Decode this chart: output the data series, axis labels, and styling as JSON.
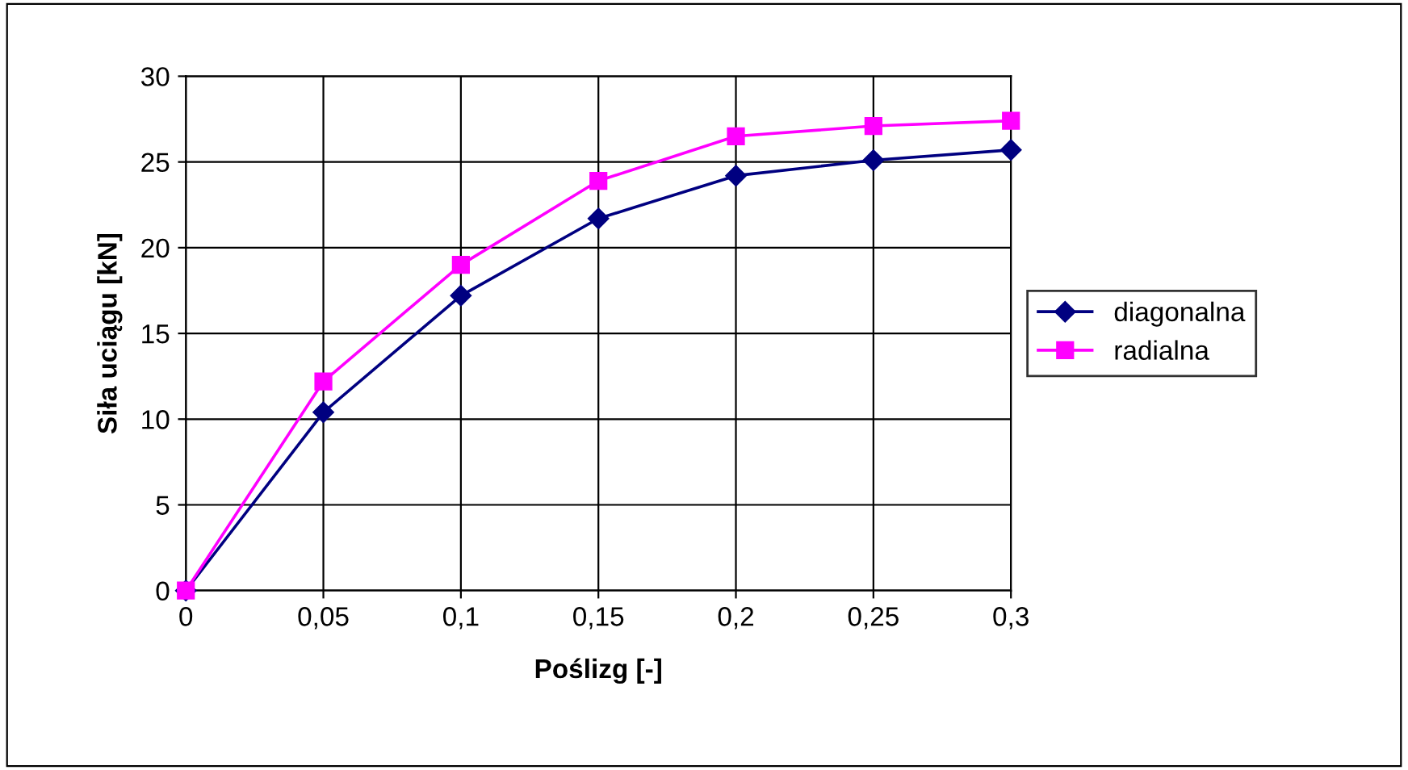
{
  "chart_data": {
    "type": "line",
    "xlabel": "Poślizg [-]",
    "ylabel": "Siła uciągu [kN]",
    "x": [
      0,
      0.05,
      0.1,
      0.15,
      0.2,
      0.25,
      0.3
    ],
    "series": [
      {
        "name": "diagonalna",
        "color": "#000080",
        "marker": "diamond",
        "values": [
          0,
          10.4,
          17.2,
          21.7,
          24.2,
          25.1,
          25.7
        ]
      },
      {
        "name": "radialna",
        "color": "#ff00ff",
        "marker": "square",
        "values": [
          0,
          12.2,
          19.0,
          23.9,
          26.5,
          27.1,
          27.4
        ]
      }
    ],
    "xlim": [
      0,
      0.3
    ],
    "ylim": [
      0,
      30
    ],
    "xticks": [
      0,
      {
        "value": 0.05,
        "label": "0,05"
      },
      {
        "value": 0.1,
        "label": "0,1"
      },
      {
        "value": 0.15,
        "label": "0,15"
      },
      {
        "value": 0.2,
        "label": "0,2"
      },
      {
        "value": 0.25,
        "label": "0,25"
      },
      {
        "value": 0.3,
        "label": "0,3"
      }
    ],
    "yticks": [
      0,
      5,
      10,
      15,
      20,
      25,
      30
    ],
    "grid": true,
    "legend": "right",
    "line_style": "solid"
  }
}
